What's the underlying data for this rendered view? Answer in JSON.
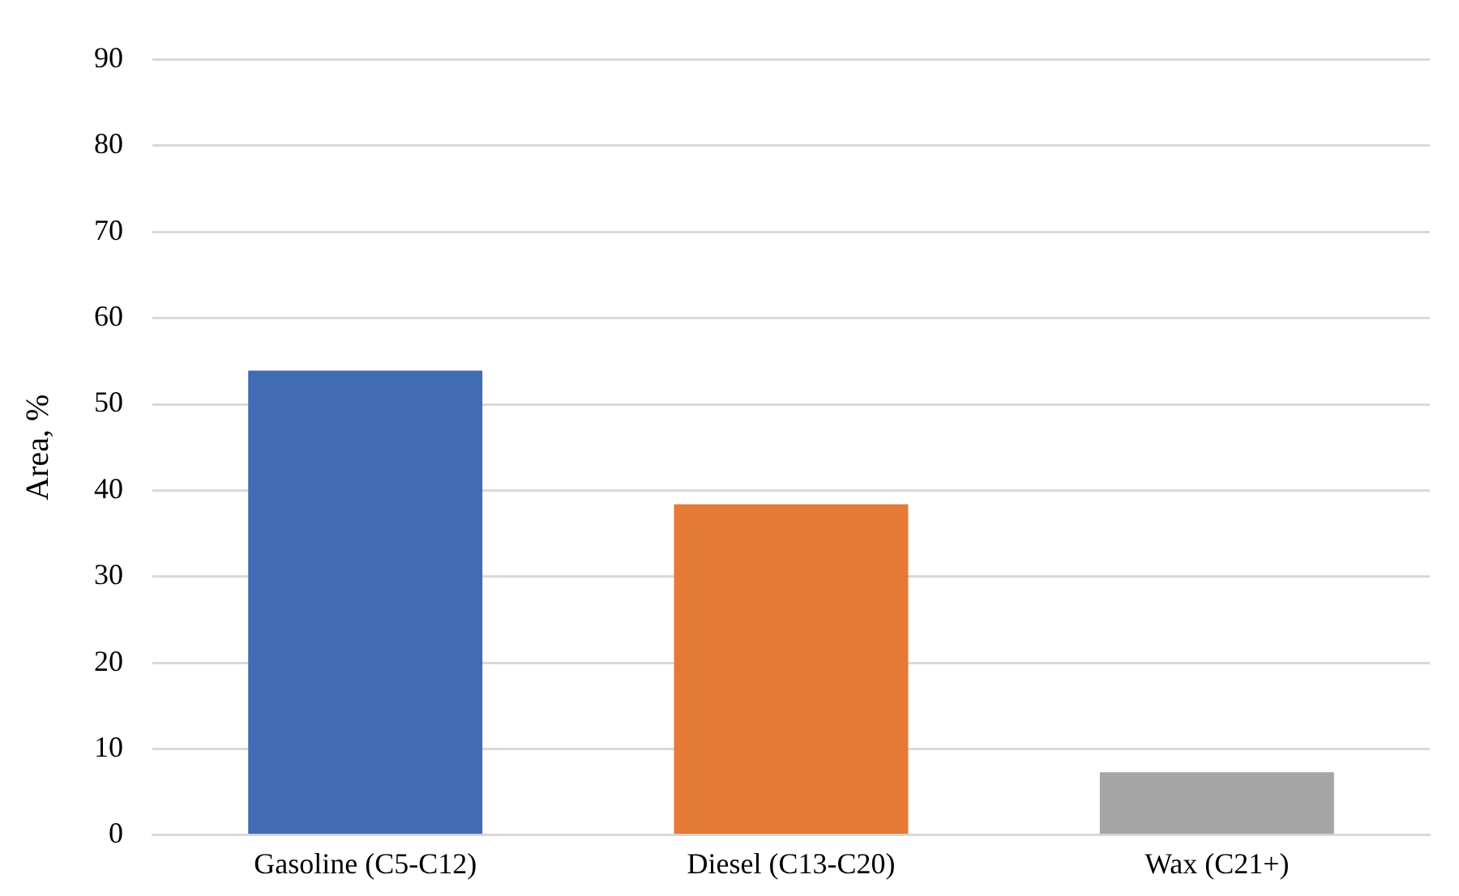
{
  "chart_data": {
    "type": "bar",
    "ylabel": "Area, %",
    "categories": [
      "Gasoline (C5-C12)",
      "Diesel (C13-C20)",
      "Wax (C21+)"
    ],
    "values": [
      53.9,
      38.4,
      7.3
    ],
    "colors": [
      "#416bb3",
      "#e47a35",
      "#a5a5a5"
    ],
    "ylim": [
      0,
      90
    ],
    "yticks": [
      0,
      10,
      20,
      30,
      40,
      50,
      60,
      70,
      80,
      90
    ],
    "grid": "y",
    "legend": false
  }
}
